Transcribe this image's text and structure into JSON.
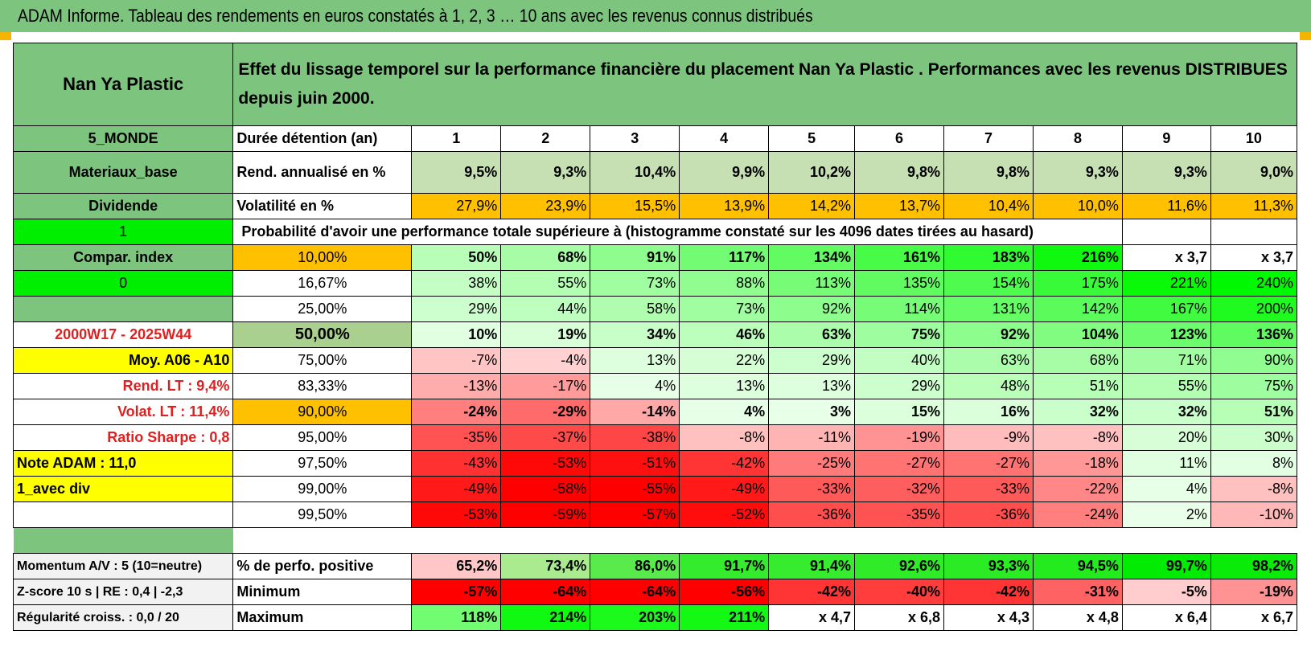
{
  "title": "ADAM Informe. Tableau des rendements en euros constatés à 1, 2, 3 … 10 ans avec les revenus connus distribués",
  "header": {
    "fund": "Nan Ya Plastic",
    "description": "Effet du lissage temporel sur la performance financière du placement Nan Ya Plastic . Performances avec les revenus DISTRIBUES depuis juin 2000."
  },
  "side": {
    "region": "5_MONDE",
    "sector": "Materiaux_base",
    "type": "Dividende",
    "flag1": "1",
    "compar": "Compar. index",
    "flag0": "0",
    "period": "2000W17 - 2025W44",
    "moy": "Moy. A06 - A10",
    "rend_lt": "Rend. LT :   9,4%",
    "volat_lt": "Volat. LT :   11,4%",
    "sharpe": "Ratio Sharpe :   0,8",
    "note": "Note ADAM : 11,0",
    "div": "1_avec div"
  },
  "labels": {
    "duree": "Durée détention (an)",
    "rend": "Rend. annualisé en %",
    "vol": "Volatilité en %",
    "proba": "Probabilité d'avoir une performance totale supérieure à (histogramme constaté sur les 4096 dates tirées au hasard)"
  },
  "years": [
    "1",
    "2",
    "3",
    "4",
    "5",
    "6",
    "7",
    "8",
    "9",
    "10"
  ],
  "rend": [
    "9,5%",
    "9,3%",
    "10,4%",
    "9,9%",
    "10,2%",
    "9,8%",
    "9,8%",
    "9,3%",
    "9,3%",
    "9,0%"
  ],
  "vol": [
    "27,9%",
    "23,9%",
    "15,5%",
    "13,9%",
    "14,2%",
    "13,7%",
    "10,4%",
    "10,0%",
    "11,6%",
    "11,3%"
  ],
  "prob_rows": [
    {
      "p": "10,00%",
      "v": [
        "50%",
        "68%",
        "91%",
        "117%",
        "134%",
        "161%",
        "183%",
        "216%",
        "x 3,7",
        "x 3,7"
      ]
    },
    {
      "p": "16,67%",
      "v": [
        "38%",
        "55%",
        "73%",
        "88%",
        "113%",
        "135%",
        "154%",
        "175%",
        "221%",
        "240%"
      ]
    },
    {
      "p": "25,00%",
      "v": [
        "29%",
        "44%",
        "58%",
        "73%",
        "92%",
        "114%",
        "131%",
        "142%",
        "167%",
        "200%"
      ]
    },
    {
      "p": "50,00%",
      "v": [
        "10%",
        "19%",
        "34%",
        "46%",
        "63%",
        "75%",
        "92%",
        "104%",
        "123%",
        "136%"
      ]
    },
    {
      "p": "75,00%",
      "v": [
        "-7%",
        "-4%",
        "13%",
        "22%",
        "29%",
        "40%",
        "63%",
        "68%",
        "71%",
        "90%"
      ]
    },
    {
      "p": "83,33%",
      "v": [
        "-13%",
        "-17%",
        "4%",
        "13%",
        "13%",
        "29%",
        "48%",
        "51%",
        "55%",
        "75%"
      ]
    },
    {
      "p": "90,00%",
      "v": [
        "-24%",
        "-29%",
        "-14%",
        "4%",
        "3%",
        "15%",
        "16%",
        "32%",
        "32%",
        "51%"
      ]
    },
    {
      "p": "95,00%",
      "v": [
        "-35%",
        "-37%",
        "-38%",
        "-8%",
        "-11%",
        "-19%",
        "-9%",
        "-8%",
        "20%",
        "30%"
      ]
    },
    {
      "p": "97,50%",
      "v": [
        "-43%",
        "-53%",
        "-51%",
        "-42%",
        "-25%",
        "-27%",
        "-27%",
        "-18%",
        "11%",
        "8%"
      ]
    },
    {
      "p": "99,00%",
      "v": [
        "-49%",
        "-58%",
        "-55%",
        "-49%",
        "-33%",
        "-32%",
        "-33%",
        "-22%",
        "4%",
        "-8%"
      ]
    },
    {
      "p": "99,50%",
      "v": [
        "-53%",
        "-59%",
        "-57%",
        "-52%",
        "-36%",
        "-35%",
        "-36%",
        "-24%",
        "2%",
        "-10%"
      ]
    }
  ],
  "bottom": [
    {
      "side": "Momentum A/V : 5 (10=neutre)",
      "label": "% de perfo. positive",
      "v": [
        "65,2%",
        "73,4%",
        "86,0%",
        "91,7%",
        "91,4%",
        "92,6%",
        "93,3%",
        "94,5%",
        "99,7%",
        "98,2%"
      ]
    },
    {
      "side": "Z-score 10 s | RE : 0,4 | -2,3",
      "label": "Minimum",
      "v": [
        "-57%",
        "-64%",
        "-64%",
        "-56%",
        "-42%",
        "-40%",
        "-42%",
        "-31%",
        "-5%",
        "-19%"
      ]
    },
    {
      "side": "Régularité croiss. : 0,0 / 20",
      "label": "Maximum",
      "v": [
        "118%",
        "214%",
        "203%",
        "211%",
        "x 4,7",
        "x 6,8",
        "x 4,3",
        "x 4,8",
        "x 6,4",
        "x 6,7"
      ]
    }
  ],
  "colors": {
    "header_green": "#7dc57e",
    "bright_green": "#00ee00",
    "yellow": "#ffff00",
    "orange": "#ffc000",
    "light_green_cell": "#c6e0b4",
    "red_text": "#e02020"
  }
}
